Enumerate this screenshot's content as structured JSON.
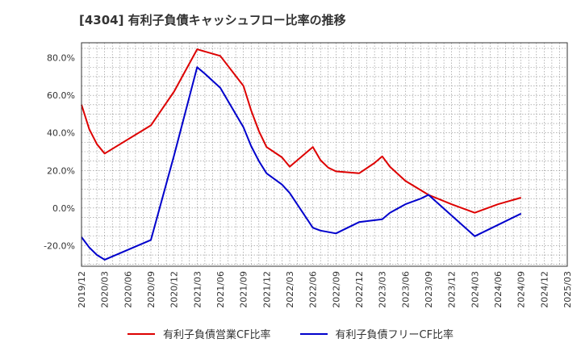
{
  "chart_data": {
    "type": "line",
    "title": "[4304]  有利子負債キャッシュフロー比率の推移",
    "xlabel": "",
    "ylabel": "",
    "ylim": [
      -31,
      88
    ],
    "yticks": [
      -20,
      0,
      20,
      40,
      60,
      80
    ],
    "ytick_labels": [
      "-20.0%",
      "0.0%",
      "20.0%",
      "40.0%",
      "60.0%",
      "80.0%"
    ],
    "xticks": [
      "2019/12",
      "2020/03",
      "2020/06",
      "2020/09",
      "2020/12",
      "2021/03",
      "2021/06",
      "2021/09",
      "2021/12",
      "2022/03",
      "2022/06",
      "2022/09",
      "2022/12",
      "2023/03",
      "2023/06",
      "2023/09",
      "2023/12",
      "2024/03",
      "2024/06",
      "2024/09",
      "2024/12",
      "2025/03"
    ],
    "grid": true,
    "legend_position": "bottom",
    "series": [
      {
        "name": "有利子負債営業CF比率",
        "color": "#dd0000",
        "points": [
          [
            "2019/12",
            55
          ],
          [
            "2020/01",
            42
          ],
          [
            "2020/02",
            34
          ],
          [
            "2020/03",
            29
          ],
          [
            "2020/09",
            44
          ],
          [
            "2020/12",
            62
          ],
          [
            "2021/03",
            84.5
          ],
          [
            "2021/06",
            81
          ],
          [
            "2021/09",
            65
          ],
          [
            "2021/10",
            52
          ],
          [
            "2021/11",
            41
          ],
          [
            "2021/12",
            32.5
          ],
          [
            "2022/02",
            27
          ],
          [
            "2022/03",
            22
          ],
          [
            "2022/06",
            32.5
          ],
          [
            "2022/07",
            25.5
          ],
          [
            "2022/08",
            21.5
          ],
          [
            "2022/09",
            19.5
          ],
          [
            "2022/12",
            18.5
          ],
          [
            "2023/02",
            24
          ],
          [
            "2023/03",
            27.5
          ],
          [
            "2023/04",
            22
          ],
          [
            "2023/06",
            14.5
          ],
          [
            "2023/09",
            7
          ],
          [
            "2023/12",
            2
          ],
          [
            "2024/03",
            -2.5
          ],
          [
            "2024/06",
            2
          ],
          [
            "2024/09",
            5.5
          ]
        ]
      },
      {
        "name": "有利子負債フリーCF比率",
        "color": "#0000cc",
        "points": [
          [
            "2019/12",
            -15.5
          ],
          [
            "2020/01",
            -21
          ],
          [
            "2020/02",
            -25
          ],
          [
            "2020/03",
            -27.5
          ],
          [
            "2020/09",
            -17
          ],
          [
            "2020/12",
            28
          ],
          [
            "2021/03",
            75
          ],
          [
            "2021/04",
            71.5
          ],
          [
            "2021/06",
            64
          ],
          [
            "2021/09",
            43
          ],
          [
            "2021/10",
            33
          ],
          [
            "2021/11",
            25
          ],
          [
            "2021/12",
            18.5
          ],
          [
            "2022/02",
            12.5
          ],
          [
            "2022/03",
            8
          ],
          [
            "2022/06",
            -10.5
          ],
          [
            "2022/07",
            -12
          ],
          [
            "2022/09",
            -13.5
          ],
          [
            "2022/12",
            -7.5
          ],
          [
            "2023/03",
            -6
          ],
          [
            "2023/04",
            -2.5
          ],
          [
            "2023/06",
            2
          ],
          [
            "2023/08",
            5
          ],
          [
            "2023/09",
            7
          ],
          [
            "2024/03",
            -15
          ],
          [
            "2024/06",
            -9
          ],
          [
            "2024/09",
            -3
          ]
        ]
      }
    ]
  }
}
